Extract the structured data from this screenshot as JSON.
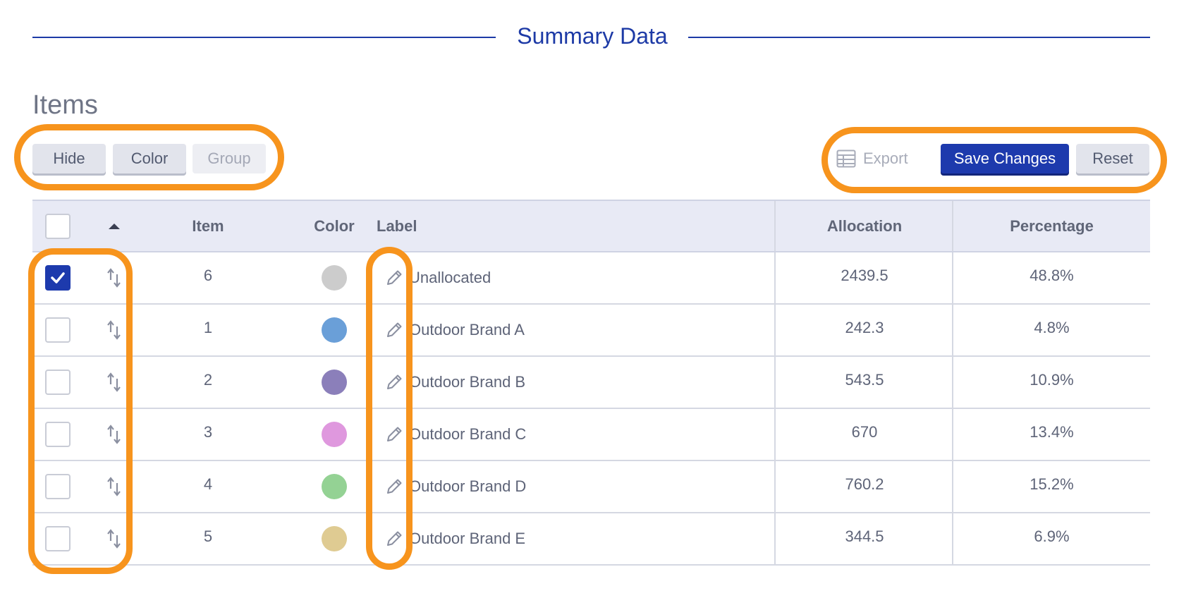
{
  "header": {
    "title": "Summary Data"
  },
  "items_title": "Items",
  "toolbar": {
    "hide_label": "Hide",
    "color_label": "Color",
    "group_label": "Group",
    "export_label": "Export",
    "save_label": "Save Changes",
    "reset_label": "Reset"
  },
  "table": {
    "columns": {
      "item": "Item",
      "color": "Color",
      "label": "Label",
      "allocation": "Allocation",
      "percentage": "Percentage"
    },
    "rows": [
      {
        "checked": true,
        "item": "6",
        "color": "#cccccc",
        "label": "Unallocated",
        "allocation": "2439.5",
        "percentage": "48.8%"
      },
      {
        "checked": false,
        "item": "1",
        "color": "#6a9fd8",
        "label": "Outdoor Brand A",
        "allocation": "242.3",
        "percentage": "4.8%"
      },
      {
        "checked": false,
        "item": "2",
        "color": "#8b7fba",
        "label": "Outdoor Brand B",
        "allocation": "543.5",
        "percentage": "10.9%"
      },
      {
        "checked": false,
        "item": "3",
        "color": "#df98de",
        "label": "Outdoor Brand C",
        "allocation": "670",
        "percentage": "13.4%"
      },
      {
        "checked": false,
        "item": "4",
        "color": "#94d294",
        "label": "Outdoor Brand D",
        "allocation": "760.2",
        "percentage": "15.2%"
      },
      {
        "checked": false,
        "item": "5",
        "color": "#dfcb92",
        "label": "Outdoor Brand E",
        "allocation": "344.5",
        "percentage": "6.9%"
      }
    ]
  },
  "colors": {
    "accent": "#1d3aad",
    "annotation": "#f7941d"
  }
}
